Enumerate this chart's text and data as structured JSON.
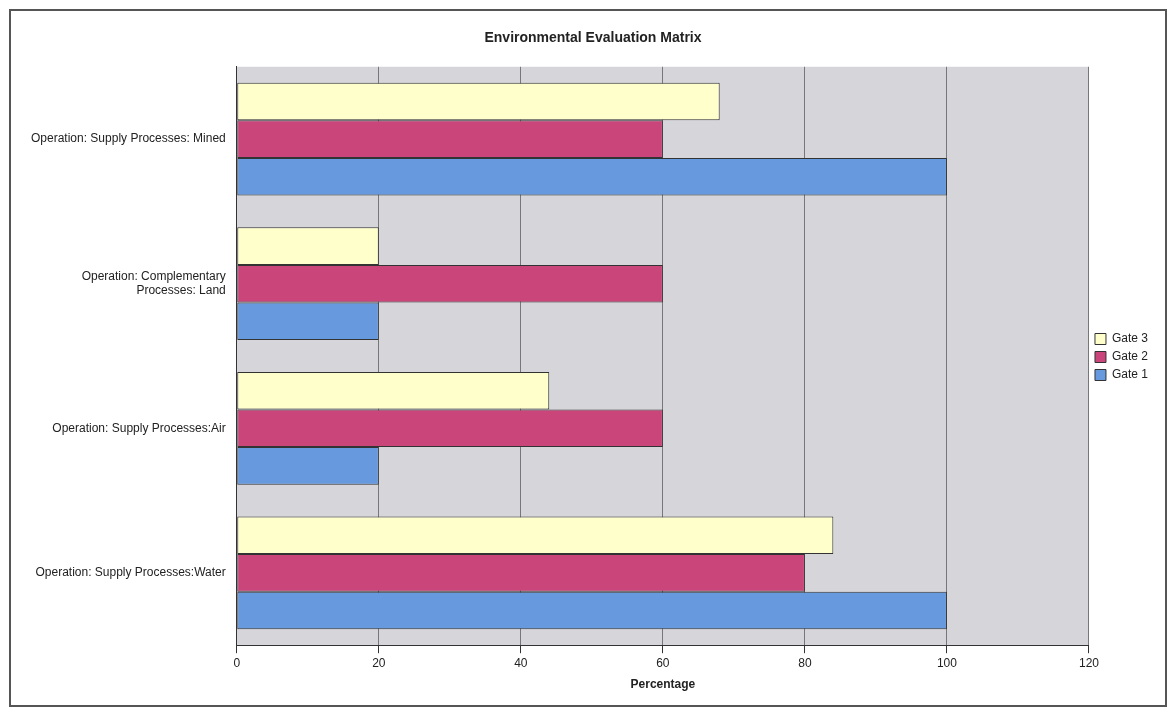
{
  "chart_data": {
    "type": "bar",
    "orientation": "horizontal",
    "title": "Environmental Evaluation Matrix",
    "xlabel": "Percentage",
    "categories": [
      "Operation: Supply Processes: Mined",
      "Operation: Complementary Processes: Land",
      "Operation: Supply Processes:Air",
      "Operation: Supply Processes:Water"
    ],
    "series": [
      {
        "name": "Gate 3",
        "color": "#ffffcc",
        "values": [
          68,
          20,
          44,
          84
        ]
      },
      {
        "name": "Gate 2",
        "color": "#c9457a",
        "values": [
          60,
          60,
          60,
          80
        ]
      },
      {
        "name": "Gate 1",
        "color": "#6699dd",
        "values": [
          100,
          20,
          20,
          100
        ]
      }
    ],
    "xlim": [
      0,
      120
    ],
    "xticks": [
      0,
      20,
      40,
      60,
      80,
      100,
      120
    ],
    "grid": "x",
    "legend": "right"
  }
}
